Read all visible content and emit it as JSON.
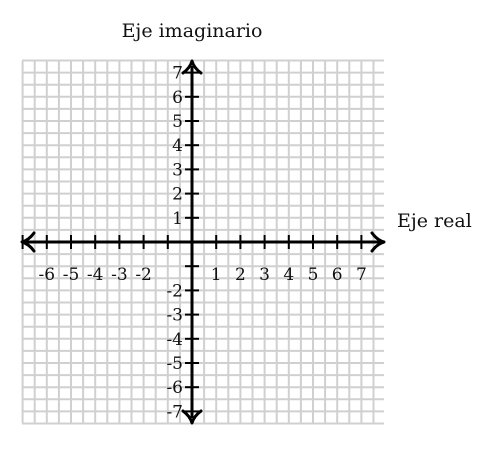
{
  "diagram": {
    "title_imaginary_axis": "Eje imaginario",
    "title_real_axis": "Eje real",
    "x_range": [
      -7.5,
      7.5
    ],
    "y_range": [
      -7.5,
      7.5
    ],
    "grid_step": 0.5,
    "x_tick_labels": [
      "-6",
      "-5",
      "-4",
      "-3",
      "-2",
      "1",
      "2",
      "3",
      "4",
      "5",
      "6",
      "7"
    ],
    "x_tick_values": [
      -6,
      -5,
      -4,
      -3,
      -2,
      1,
      2,
      3,
      4,
      5,
      6,
      7
    ],
    "y_tick_labels": [
      "7",
      "6",
      "5",
      "4",
      "3",
      "2",
      "1",
      "-2",
      "-3",
      "-4",
      "-5",
      "-6",
      "-7"
    ],
    "y_tick_values": [
      7,
      6,
      5,
      4,
      3,
      2,
      1,
      -2,
      -3,
      -4,
      -5,
      -6,
      -7
    ],
    "colors": {
      "grid": "#d0d0d0",
      "axis": "#000000",
      "text": "#111111"
    }
  }
}
